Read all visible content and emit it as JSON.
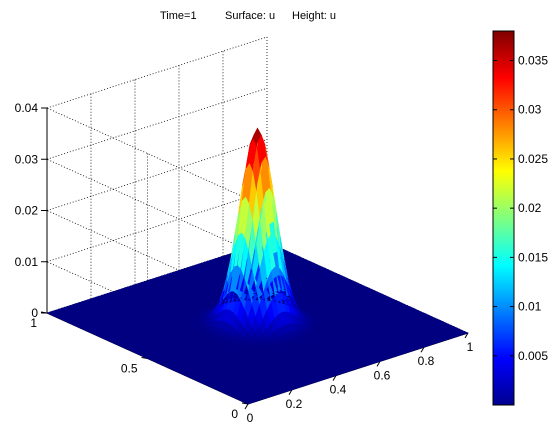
{
  "chart_data": {
    "type": "surface",
    "title_parts": {
      "time": "Time=1",
      "surface": "Surface: u",
      "height": "Height: u"
    },
    "x_ticks": [
      "0",
      "0.2",
      "0.4",
      "0.6",
      "0.8",
      "1"
    ],
    "x_tick_values": [
      0,
      0.2,
      0.4,
      0.6,
      0.8,
      1
    ],
    "y_ticks": [
      "0",
      "0.5",
      "1"
    ],
    "y_tick_values": [
      0,
      0.5,
      1
    ],
    "z_ticks": [
      "0",
      "0.01",
      "0.02",
      "0.03",
      "0.04"
    ],
    "z_tick_values": [
      0,
      0.01,
      0.02,
      0.03,
      0.04
    ],
    "xlim": [
      0,
      1
    ],
    "ylim": [
      0,
      1
    ],
    "zlim": [
      0,
      0.04
    ],
    "grid": true,
    "colormap": "jet",
    "surface": {
      "shape": "gaussian-peak",
      "center": [
        0.5,
        0.5
      ],
      "peak_value": 0.038,
      "spread": 0.06
    },
    "colorbar": {
      "ticks": [
        "0.005",
        "0.01",
        "0.015",
        "0.02",
        "0.025",
        "0.03",
        "0.035"
      ],
      "tick_values": [
        0.005,
        0.01,
        0.015,
        0.02,
        0.025,
        0.03,
        0.035
      ],
      "range": [
        0,
        0.038
      ],
      "placement": "right"
    }
  }
}
